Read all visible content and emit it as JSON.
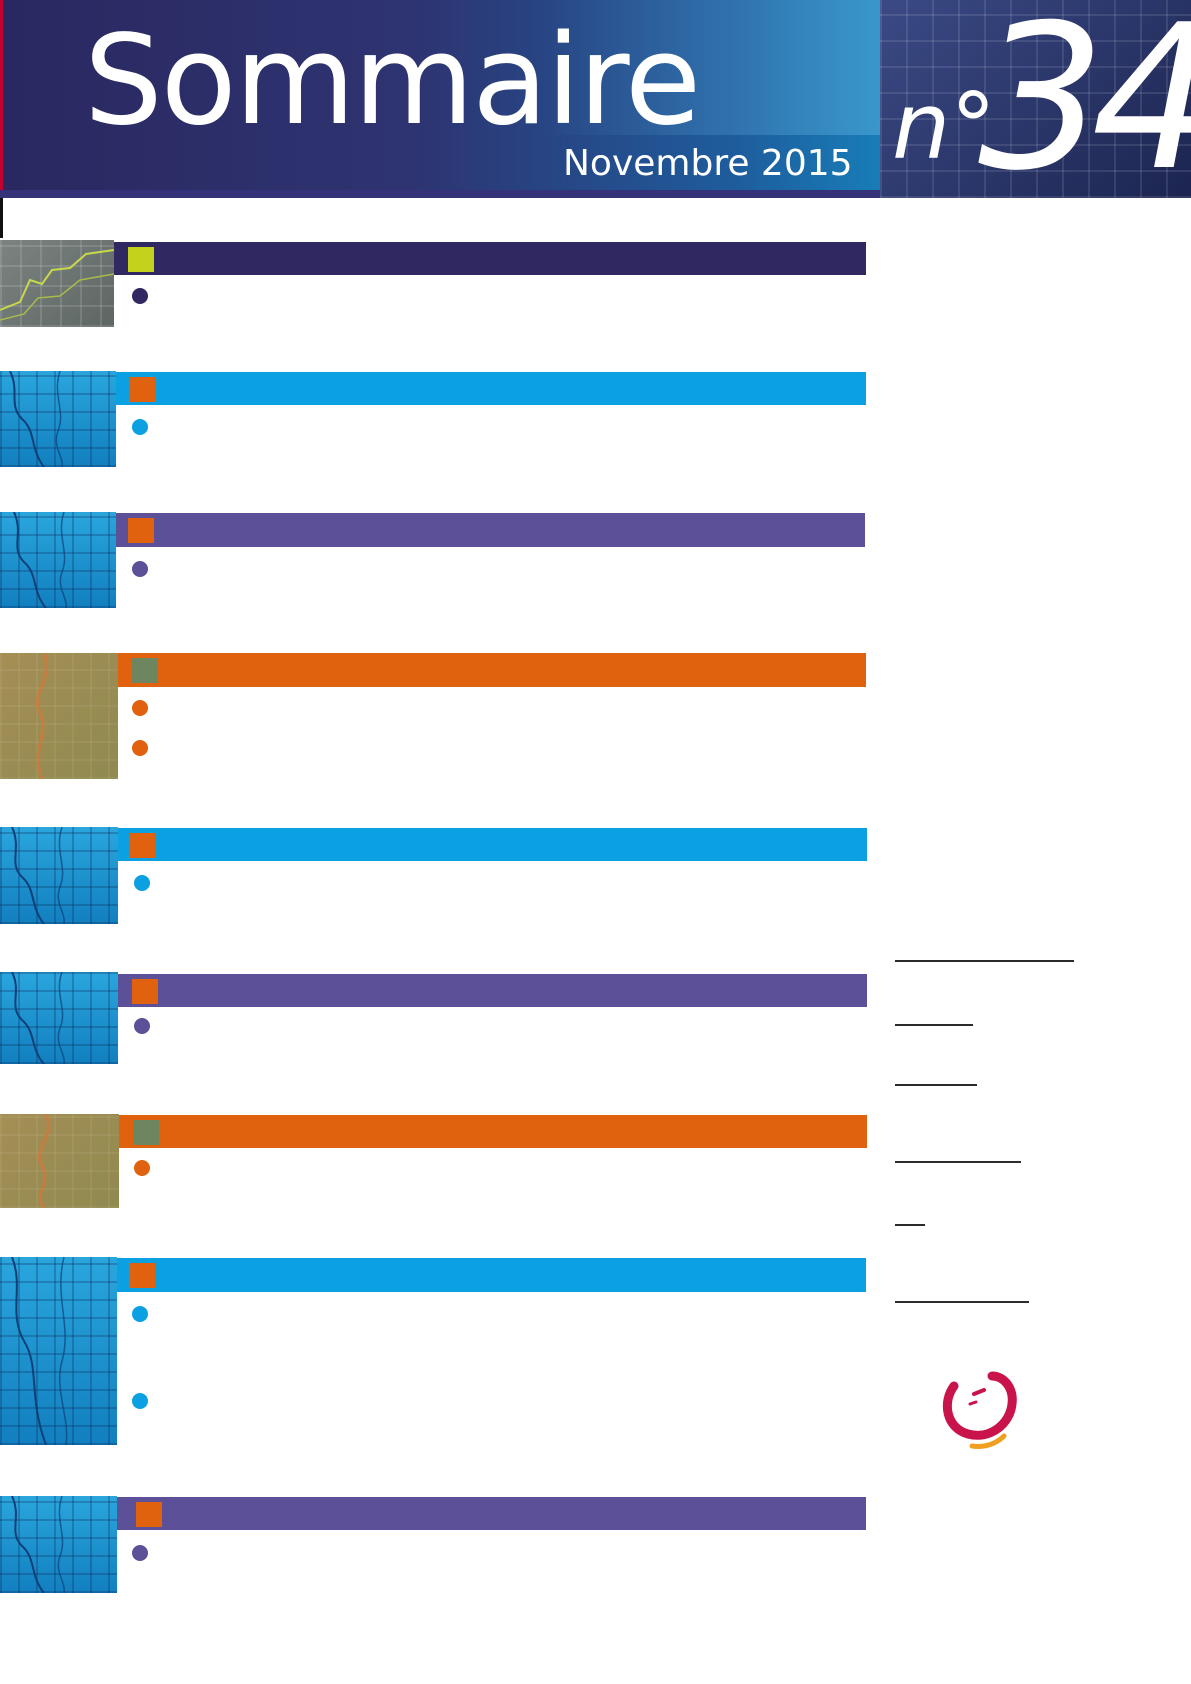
{
  "header": {
    "title": "Sommaire",
    "date": "Novembre 2015",
    "issue_prefix": "n°",
    "issue_number": "34"
  },
  "colors": {
    "navy": "#302860",
    "blue": "#0aa0e2",
    "purple": "#5c5098",
    "orange": "#e0620e",
    "lime": "#c4d21b",
    "olive_square": "#6e8660",
    "logo_red": "#c8144b",
    "logo_orange": "#f0a020"
  },
  "sections": [
    {
      "bar_color": "#302860",
      "square_color": "#c4d21b",
      "dot_color": "#302860",
      "thumbnail": "grey-grid-image",
      "bullets": 1
    },
    {
      "bar_color": "#0aa0e2",
      "square_color": "#e0620e",
      "dot_color": "#0aa0e2",
      "thumbnail": "blue-grid-image",
      "bullets": 1
    },
    {
      "bar_color": "#5c5098",
      "square_color": "#e0620e",
      "dot_color": "#5c5098",
      "thumbnail": "blue-grid-image",
      "bullets": 1
    },
    {
      "bar_color": "#e0620e",
      "square_color": "#6e8660",
      "dot_color": "#e0620e",
      "thumbnail": "olive-grid-image",
      "bullets": 2
    },
    {
      "bar_color": "#0aa0e2",
      "square_color": "#e0620e",
      "dot_color": "#0aa0e2",
      "thumbnail": "blue-grid-image",
      "bullets": 1
    },
    {
      "bar_color": "#5c5098",
      "square_color": "#e0620e",
      "dot_color": "#5c5098",
      "thumbnail": "blue-grid-image",
      "bullets": 1
    },
    {
      "bar_color": "#e0620e",
      "square_color": "#6e8660",
      "dot_color": "#e0620e",
      "thumbnail": "olive-grid-image",
      "bullets": 1
    },
    {
      "bar_color": "#0aa0e2",
      "square_color": "#e0620e",
      "dot_color": "#0aa0e2",
      "thumbnail": "blue-grid-image",
      "bullets": 2
    },
    {
      "bar_color": "#5c5098",
      "square_color": "#e0620e",
      "dot_color": "#5c5098",
      "thumbnail": "blue-grid-image",
      "bullets": 1
    }
  ],
  "right_column": {
    "rules": 6,
    "logo": "smile-logo-icon"
  }
}
